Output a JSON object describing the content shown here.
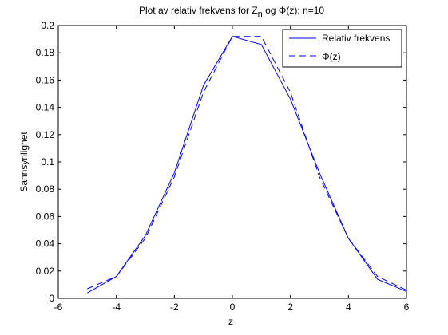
{
  "chart_data": {
    "type": "line",
    "title": {
      "prefix": "Plot av relativ frekvens for Z",
      "subscript": "n",
      "suffix": " og Φ(z); n=10"
    },
    "xlabel": "z",
    "ylabel": "Sannsynlighet",
    "xlim": [
      -6,
      6
    ],
    "ylim": [
      0,
      0.2
    ],
    "xticks": [
      -6,
      -4,
      -2,
      0,
      2,
      4,
      6
    ],
    "xtick_labels": [
      "-6",
      "-4",
      "-2",
      "0",
      "2",
      "4",
      "6"
    ],
    "yticks": [
      0,
      0.02,
      0.04,
      0.06,
      0.08,
      0.1,
      0.12,
      0.14,
      0.16,
      0.18,
      0.2
    ],
    "ytick_labels": [
      "0",
      "0.02",
      "0.04",
      "0.06",
      "0.08",
      "0.1",
      "0.12",
      "0.14",
      "0.16",
      "0.18",
      "0.2"
    ],
    "grid": false,
    "legend_position": "top-right",
    "series": [
      {
        "name": "Relativ frekvens",
        "style": "solid",
        "color": "#0000ff",
        "x": [
          -5,
          -4,
          -3,
          -2,
          -1,
          0,
          1,
          2,
          3,
          4,
          5,
          6
        ],
        "y": [
          0.004,
          0.016,
          0.046,
          0.092,
          0.156,
          0.192,
          0.186,
          0.146,
          0.092,
          0.044,
          0.014,
          0.005
        ]
      },
      {
        "name": "Φ(z)",
        "style": "dashed",
        "color": "#0000ff",
        "x": [
          -5,
          -4,
          -3,
          -2,
          -1,
          0,
          1,
          2,
          3,
          4,
          5,
          6
        ],
        "y": [
          0.007,
          0.016,
          0.044,
          0.089,
          0.151,
          0.192,
          0.192,
          0.151,
          0.089,
          0.044,
          0.016,
          0.006
        ]
      }
    ]
  }
}
